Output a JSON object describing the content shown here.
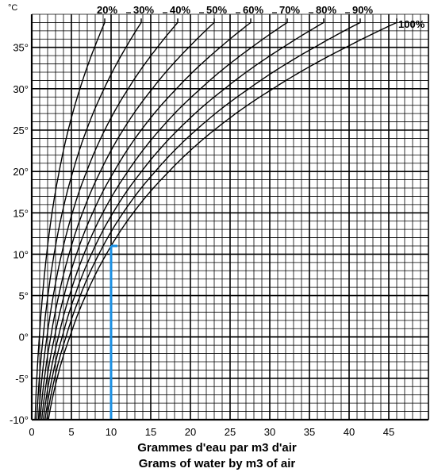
{
  "chart_data": {
    "type": "line",
    "unit_label": "°C",
    "xlabel": "Grammes d'eau par m3 d'air",
    "xlabel_en": "Grams of water by m3 of air",
    "xlim": [
      0,
      50
    ],
    "ylim": [
      -10,
      39
    ],
    "x_ticks": [
      0,
      5,
      10,
      15,
      20,
      25,
      30,
      35,
      40,
      45
    ],
    "x_tick_labels": [
      "0",
      "5",
      "10",
      "15",
      "20",
      "25",
      "30",
      "35",
      "40",
      "45"
    ],
    "y_ticks": [
      -10,
      -5,
      0,
      5,
      10,
      15,
      20,
      25,
      30,
      35
    ],
    "y_tick_labels": [
      "-10°",
      "-5°",
      "0°",
      "5°",
      "10°",
      "15°",
      "20°",
      "25°",
      "30°",
      "35°"
    ],
    "grid": true,
    "saturation_curve": {
      "temperature": [
        -10,
        -5,
        0,
        5,
        10,
        15,
        20,
        25,
        30,
        35,
        38
      ],
      "water_g_per_m3": [
        2.1,
        3.2,
        4.8,
        6.8,
        9.4,
        12.8,
        17.3,
        23.0,
        30.4,
        39.6,
        46.0
      ]
    },
    "series": [
      {
        "name": "20%",
        "fraction": 0.2
      },
      {
        "name": "30%",
        "fraction": 0.3
      },
      {
        "name": "40%",
        "fraction": 0.4
      },
      {
        "name": "50%",
        "fraction": 0.5
      },
      {
        "name": "60%",
        "fraction": 0.6
      },
      {
        "name": "70%",
        "fraction": 0.7
      },
      {
        "name": "80%",
        "fraction": 0.8
      },
      {
        "name": "90%",
        "fraction": 0.9
      },
      {
        "name": "100%",
        "fraction": 1.0
      }
    ],
    "highlight": {
      "x": 10,
      "y_from": -10,
      "y_to": 11,
      "color": "#1a8fe3"
    },
    "colors": {
      "curve": "#000000",
      "grid": "#000000",
      "highlight": "#1a8fe3"
    }
  }
}
